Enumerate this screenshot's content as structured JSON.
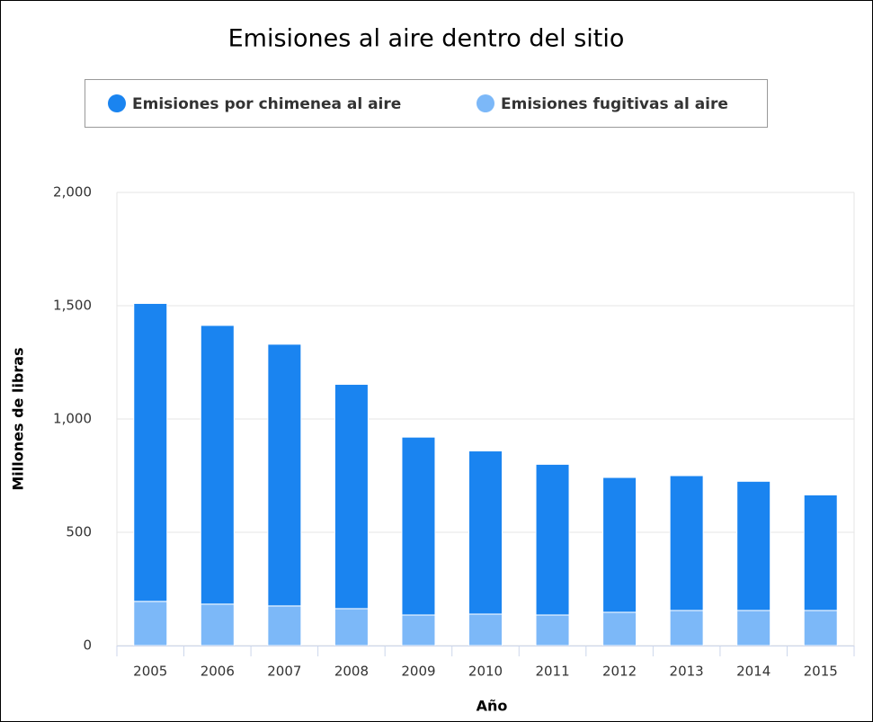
{
  "chart_data": {
    "type": "bar",
    "stacked": true,
    "title": "Emisiones al aire dentro del sitio",
    "x_label": "Año",
    "y_label": "Millones de libras",
    "categories": [
      "2005",
      "2006",
      "2007",
      "2008",
      "2009",
      "2010",
      "2011",
      "2012",
      "2013",
      "2014",
      "2015"
    ],
    "series": [
      {
        "name": "Emisiones por chimenea al aire",
        "color": "#1a84f0",
        "values": [
          1315,
          1230,
          1155,
          990,
          785,
          720,
          665,
          595,
          595,
          570,
          510
        ]
      },
      {
        "name": "Emisiones fugitivas al aire",
        "color": "#7cb8f8",
        "values": [
          195,
          183,
          175,
          163,
          135,
          139,
          135,
          147,
          155,
          155,
          155
        ]
      }
    ],
    "ylim": [
      0,
      2000
    ],
    "yticks": [
      0,
      500,
      {
        "value": 1000,
        "label": "1,000"
      },
      {
        "value": 1500,
        "label": "1,500"
      },
      {
        "value": 2000,
        "label": "2,000"
      }
    ],
    "grid": true,
    "legend": "top"
  }
}
